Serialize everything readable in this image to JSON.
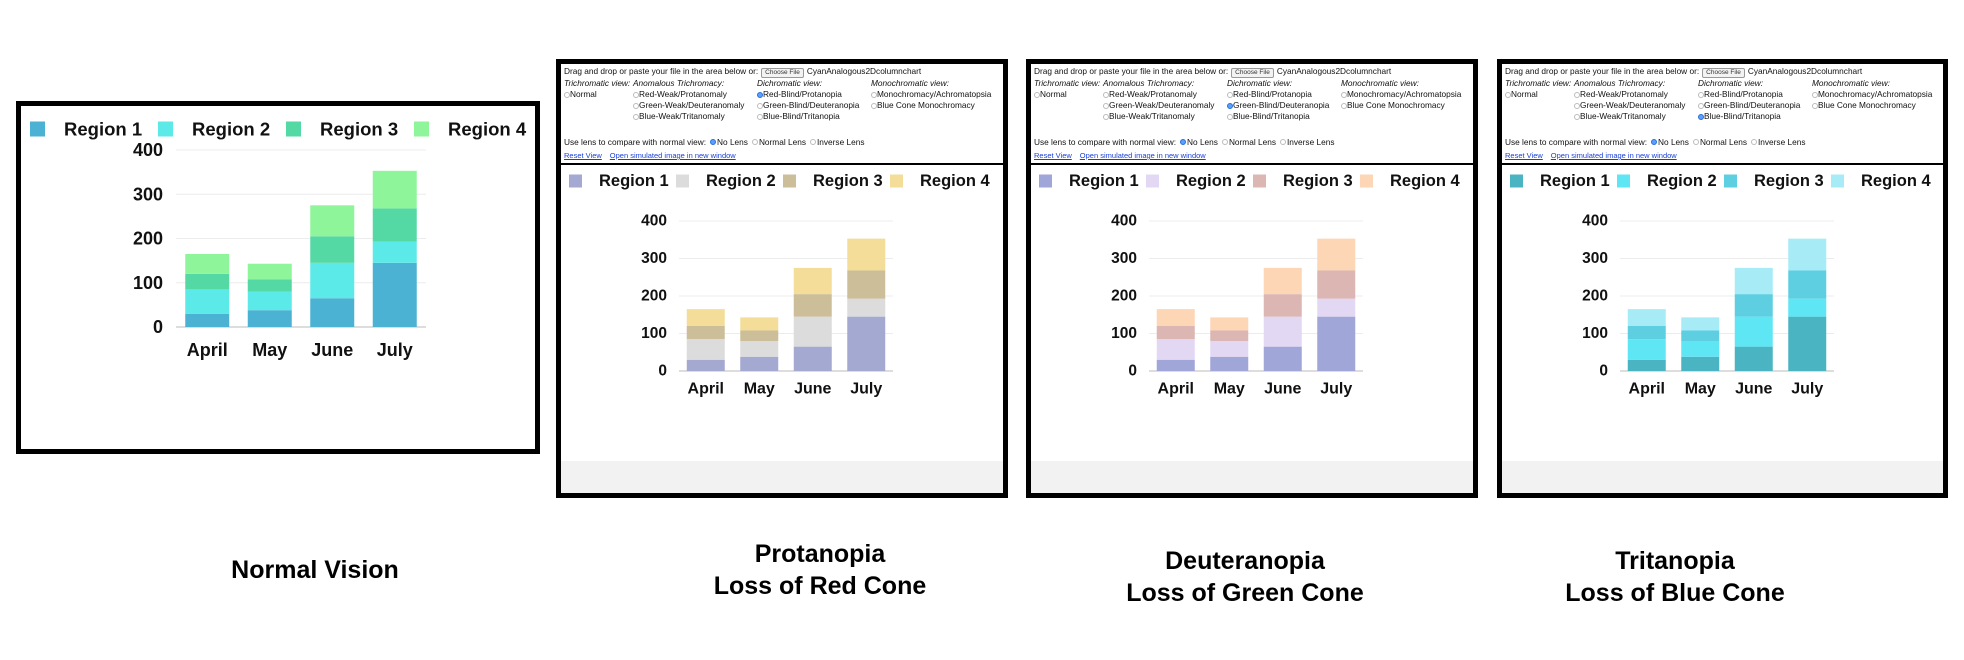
{
  "captions": {
    "normal": [
      "Normal Vision"
    ],
    "protanopia": [
      "Protanopia",
      "Loss of Red Cone"
    ],
    "deuteranopia": [
      "Deuteranopia",
      "Loss of Green Cone"
    ],
    "tritanopia": [
      "Tritanopia",
      "Loss of Blue Cone"
    ]
  },
  "simulator": {
    "drop_prompt": "Drag and drop or paste your file in the area below or:",
    "choose_file_label": "Choose File",
    "file_name": "CyanAnalogous2Dcolumnchart",
    "trichromatic": {
      "heading": "Trichromatic view:",
      "options": [
        "Normal"
      ]
    },
    "anomalous": {
      "heading": "Anomalous Trichromacy:",
      "options": [
        "Red-Weak/Protanomaly",
        "Green-Weak/Deuteranomaly",
        "Blue-Weak/Tritanomaly"
      ]
    },
    "dichromatic": {
      "heading": "Dichromatic view:",
      "options": [
        "Red-Blind/Protanopia",
        "Green-Blind/Deuteranopia",
        "Blue-Blind/Tritanopia"
      ]
    },
    "monochromatic": {
      "heading": "Monochromatic view:",
      "options": [
        "Monochromacy/Achromatopsia",
        "Blue Cone Monochromacy"
      ]
    },
    "lens_prompt": "Use lens to compare with normal view:",
    "lens_options": [
      "No Lens",
      "Normal Lens",
      "Inverse Lens"
    ],
    "reset_view": "Reset View",
    "open_new_window": "Open simulated image in new window"
  },
  "palettes": {
    "normal": [
      "#4bb2d3",
      "#5ceae8",
      "#55d9a4",
      "#8ef59a"
    ],
    "protanopia": [
      "#a3a9d1",
      "#dcdcdc",
      "#cdbe9a",
      "#f3dd99"
    ],
    "deuteranopia": [
      "#a1a6d8",
      "#e2d8f3",
      "#dcb6b2",
      "#fdd6b6"
    ],
    "tritanopia": [
      "#4bb4c2",
      "#5ee6f5",
      "#5dcfe0",
      "#a7ebf7"
    ]
  },
  "chart_data": [
    {
      "id": "normal",
      "type": "bar",
      "stacked": true,
      "categories": [
        "April",
        "May",
        "June",
        "July"
      ],
      "series": [
        {
          "name": "Region 1",
          "values": [
            30,
            38,
            65,
            145
          ]
        },
        {
          "name": "Region 2",
          "values": [
            55,
            42,
            80,
            48
          ]
        },
        {
          "name": "Region 3",
          "values": [
            35,
            28,
            60,
            75
          ]
        },
        {
          "name": "Region 4",
          "values": [
            45,
            35,
            70,
            85
          ]
        }
      ],
      "yticks": [
        0,
        100,
        200,
        300,
        400
      ],
      "ylim": [
        0,
        400
      ],
      "legend_position": "top",
      "grid": true
    },
    {
      "id": "protanopia",
      "type": "bar",
      "stacked": true,
      "categories": [
        "April",
        "May",
        "June",
        "July"
      ],
      "series": [
        {
          "name": "Region 1",
          "values": [
            30,
            38,
            65,
            145
          ]
        },
        {
          "name": "Region 2",
          "values": [
            55,
            42,
            80,
            48
          ]
        },
        {
          "name": "Region 3",
          "values": [
            35,
            28,
            60,
            75
          ]
        },
        {
          "name": "Region 4",
          "values": [
            45,
            35,
            70,
            85
          ]
        }
      ],
      "yticks": [
        0,
        100,
        200,
        300,
        400
      ],
      "ylim": [
        0,
        400
      ],
      "legend_position": "top",
      "grid": true
    },
    {
      "id": "deuteranopia",
      "type": "bar",
      "stacked": true,
      "categories": [
        "April",
        "May",
        "June",
        "July"
      ],
      "series": [
        {
          "name": "Region 1",
          "values": [
            30,
            38,
            65,
            145
          ]
        },
        {
          "name": "Region 2",
          "values": [
            55,
            42,
            80,
            48
          ]
        },
        {
          "name": "Region 3",
          "values": [
            35,
            28,
            60,
            75
          ]
        },
        {
          "name": "Region 4",
          "values": [
            45,
            35,
            70,
            85
          ]
        }
      ],
      "yticks": [
        0,
        100,
        200,
        300,
        400
      ],
      "ylim": [
        0,
        400
      ],
      "legend_position": "top",
      "grid": true
    },
    {
      "id": "tritanopia",
      "type": "bar",
      "stacked": true,
      "categories": [
        "April",
        "May",
        "June",
        "July"
      ],
      "series": [
        {
          "name": "Region 1",
          "values": [
            30,
            38,
            65,
            145
          ]
        },
        {
          "name": "Region 2",
          "values": [
            55,
            42,
            80,
            48
          ]
        },
        {
          "name": "Region 3",
          "values": [
            35,
            28,
            60,
            75
          ]
        },
        {
          "name": "Region 4",
          "values": [
            45,
            35,
            70,
            85
          ]
        }
      ],
      "yticks": [
        0,
        100,
        200,
        300,
        400
      ],
      "ylim": [
        0,
        400
      ],
      "legend_position": "top",
      "grid": true
    }
  ]
}
